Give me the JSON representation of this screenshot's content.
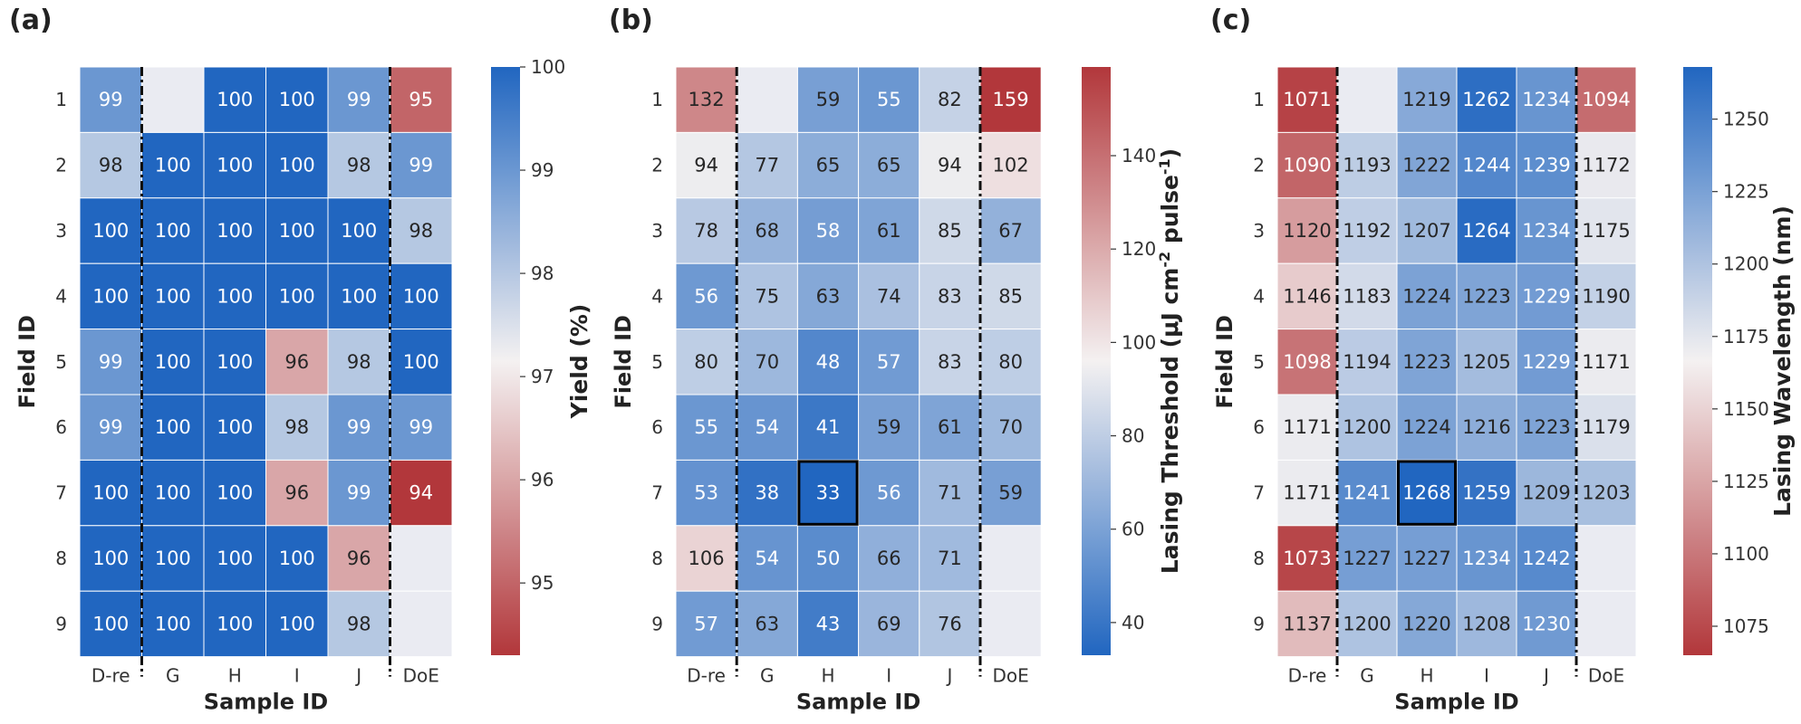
{
  "chart_data": [
    {
      "type": "heatmap",
      "panel_label": "(a)",
      "xlabel": "Sample ID",
      "ylabel": "Field ID",
      "x_categories": [
        "D-re",
        "G",
        "H",
        "I",
        "J",
        "DoE"
      ],
      "y_categories": [
        "1",
        "2",
        "3",
        "4",
        "5",
        "6",
        "7",
        "8",
        "9"
      ],
      "values": [
        [
          99,
          null,
          100,
          100,
          99,
          95
        ],
        [
          98,
          100,
          100,
          100,
          98,
          99
        ],
        [
          100,
          100,
          100,
          100,
          100,
          98
        ],
        [
          100,
          100,
          100,
          100,
          100,
          100
        ],
        [
          99,
          100,
          100,
          96,
          98,
          100
        ],
        [
          99,
          100,
          100,
          98,
          99,
          99
        ],
        [
          100,
          100,
          100,
          96,
          99,
          94
        ],
        [
          100,
          100,
          100,
          100,
          96,
          null
        ],
        [
          100,
          100,
          100,
          100,
          98,
          null
        ]
      ],
      "colormap": "red-white-blue",
      "vmin": 94.3,
      "vmax": 100,
      "colorbar_label": "Yield (%)",
      "colorbar_ticks": [
        95,
        96,
        97,
        98,
        99,
        100
      ],
      "dashed_separators_after_columns": [
        0,
        4
      ],
      "highlight": null
    },
    {
      "type": "heatmap",
      "panel_label": "(b)",
      "xlabel": "Sample ID",
      "ylabel": "Field ID",
      "x_categories": [
        "D-re",
        "G",
        "H",
        "I",
        "J",
        "DoE"
      ],
      "y_categories": [
        "1",
        "2",
        "3",
        "4",
        "5",
        "6",
        "7",
        "8",
        "9"
      ],
      "values": [
        [
          132,
          null,
          59,
          55,
          82,
          159
        ],
        [
          94,
          77,
          65,
          65,
          94,
          102
        ],
        [
          78,
          68,
          58,
          61,
          85,
          67
        ],
        [
          56,
          75,
          63,
          74,
          83,
          85
        ],
        [
          80,
          70,
          48,
          57,
          83,
          80
        ],
        [
          55,
          54,
          41,
          59,
          61,
          70
        ],
        [
          53,
          38,
          33,
          56,
          71,
          59
        ],
        [
          106,
          54,
          50,
          66,
          71,
          null
        ],
        [
          57,
          63,
          43,
          69,
          76,
          null
        ]
      ],
      "colormap": "blue-white-red",
      "vmin": 33,
      "vmax": 159,
      "colorbar_label": "Lasing Threshold (µJ cm⁻² pulse⁻¹)",
      "colorbar_label_parts": [
        "Lasing Threshold (μJ cm",
        "-2",
        " pulse",
        "-1",
        ")"
      ],
      "colorbar_ticks": [
        40,
        60,
        80,
        100,
        120,
        140
      ],
      "dashed_separators_after_columns": [
        0,
        4
      ],
      "highlight": {
        "row": 6,
        "col": 2
      }
    },
    {
      "type": "heatmap",
      "panel_label": "(c)",
      "xlabel": "Sample ID",
      "ylabel": "Field ID",
      "x_categories": [
        "D-re",
        "G",
        "H",
        "I",
        "J",
        "DoE"
      ],
      "y_categories": [
        "1",
        "2",
        "3",
        "4",
        "5",
        "6",
        "7",
        "8",
        "9"
      ],
      "values": [
        [
          1071,
          null,
          1219,
          1262,
          1234,
          1094
        ],
        [
          1090,
          1193,
          1222,
          1244,
          1239,
          1172
        ],
        [
          1120,
          1192,
          1207,
          1264,
          1234,
          1175
        ],
        [
          1146,
          1183,
          1224,
          1223,
          1229,
          1190
        ],
        [
          1098,
          1194,
          1223,
          1205,
          1229,
          1171
        ],
        [
          1171,
          1200,
          1224,
          1216,
          1223,
          1179
        ],
        [
          1171,
          1241,
          1268,
          1259,
          1209,
          1203
        ],
        [
          1073,
          1227,
          1227,
          1234,
          1242,
          null
        ],
        [
          1137,
          1200,
          1220,
          1208,
          1230,
          null
        ]
      ],
      "colormap": "red-white-blue",
      "vmin": 1065,
      "vmax": 1268,
      "colorbar_label": "Lasing Wavelength (nm)",
      "colorbar_ticks": [
        1075,
        1100,
        1125,
        1150,
        1175,
        1200,
        1225,
        1250
      ],
      "dashed_separators_after_columns": [
        0,
        4
      ],
      "highlight": {
        "row": 6,
        "col": 2
      }
    }
  ],
  "colors": {
    "blue": "#2166c0",
    "white": "#f4f1f1",
    "red": "#b2373b",
    "nan_cell": "#eaebf2",
    "cell_border": "#ffffff",
    "highlight_border": "#000000"
  }
}
